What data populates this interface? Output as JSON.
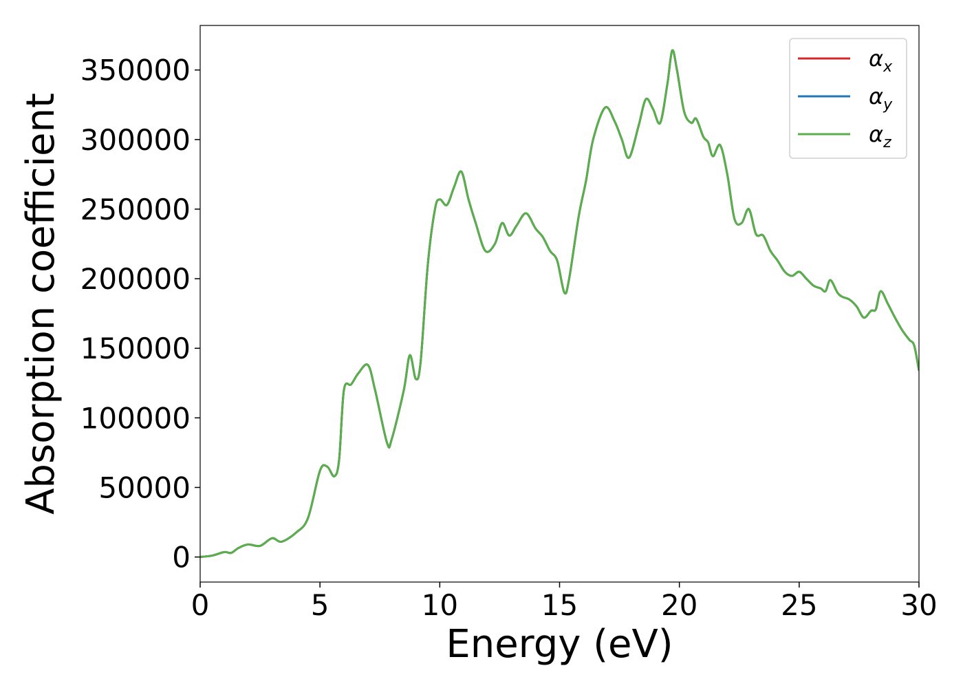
{
  "chart_data": {
    "type": "line",
    "xlabel": "Energy (eV)",
    "ylabel": "Absorption coefficient",
    "xlim": [
      0,
      30
    ],
    "ylim": [
      -18000,
      382000
    ],
    "xticks": [
      0,
      5,
      10,
      15,
      20,
      25,
      30
    ],
    "yticks": [
      0,
      50000,
      100000,
      150000,
      200000,
      250000,
      300000,
      350000
    ],
    "grid": false,
    "legend_position": "top-right",
    "x": [
      0,
      0.5,
      1.0,
      1.3,
      1.6,
      2.0,
      2.5,
      3.0,
      3.4,
      4.0,
      4.5,
      5.0,
      5.3,
      5.6,
      5.8,
      6.0,
      6.3,
      6.6,
      7.0,
      7.3,
      7.8,
      8.0,
      8.5,
      8.75,
      9.0,
      9.2,
      9.5,
      9.8,
      10.0,
      10.3,
      10.6,
      10.9,
      11.2,
      11.5,
      11.9,
      12.3,
      12.6,
      12.9,
      13.2,
      13.6,
      14.0,
      14.3,
      14.6,
      14.9,
      15.2,
      15.4,
      15.8,
      16.1,
      16.4,
      16.9,
      17.3,
      17.6,
      17.9,
      18.3,
      18.6,
      18.9,
      19.2,
      19.5,
      19.7,
      19.9,
      20.2,
      20.5,
      20.7,
      21.0,
      21.2,
      21.4,
      21.7,
      22.0,
      22.3,
      22.6,
      22.9,
      23.2,
      23.5,
      23.8,
      24.1,
      24.4,
      24.7,
      25.0,
      25.3,
      25.6,
      25.9,
      26.1,
      26.3,
      26.6,
      26.8,
      27.1,
      27.4,
      27.7,
      28.0,
      28.2,
      28.4,
      28.7,
      29.0,
      29.3,
      29.6,
      29.8,
      30.0
    ],
    "y": [
      0,
      1000,
      3500,
      3000,
      6500,
      9000,
      8000,
      13500,
      11000,
      17500,
      28000,
      62000,
      65000,
      58000,
      70000,
      120000,
      124000,
      132000,
      138000,
      120000,
      82000,
      85000,
      120000,
      145000,
      128000,
      140000,
      210000,
      250000,
      257000,
      253000,
      266000,
      277000,
      257000,
      240000,
      220000,
      225000,
      240000,
      231000,
      238000,
      247000,
      236000,
      230000,
      220000,
      213000,
      190000,
      200000,
      245000,
      270000,
      300000,
      323000,
      313000,
      300000,
      287000,
      310000,
      329000,
      322000,
      312000,
      340000,
      364000,
      350000,
      320000,
      312000,
      315000,
      302000,
      298000,
      288000,
      296000,
      275000,
      243000,
      240000,
      250000,
      232000,
      231000,
      220000,
      213000,
      205000,
      202000,
      205000,
      200000,
      195000,
      193000,
      191000,
      199000,
      190000,
      187000,
      185000,
      180000,
      172000,
      177000,
      178000,
      191000,
      182000,
      172000,
      163000,
      156000,
      152000,
      134000
    ],
    "series": [
      {
        "name": "α_x",
        "base": "α",
        "sub": "x",
        "color": "#d62728",
        "width": 3
      },
      {
        "name": "α_y",
        "base": "α",
        "sub": "y",
        "color": "#1f77b4",
        "width": 3
      },
      {
        "name": "α_z",
        "base": "α",
        "sub": "z",
        "color": "#5aaf4a",
        "width": 3
      }
    ]
  }
}
